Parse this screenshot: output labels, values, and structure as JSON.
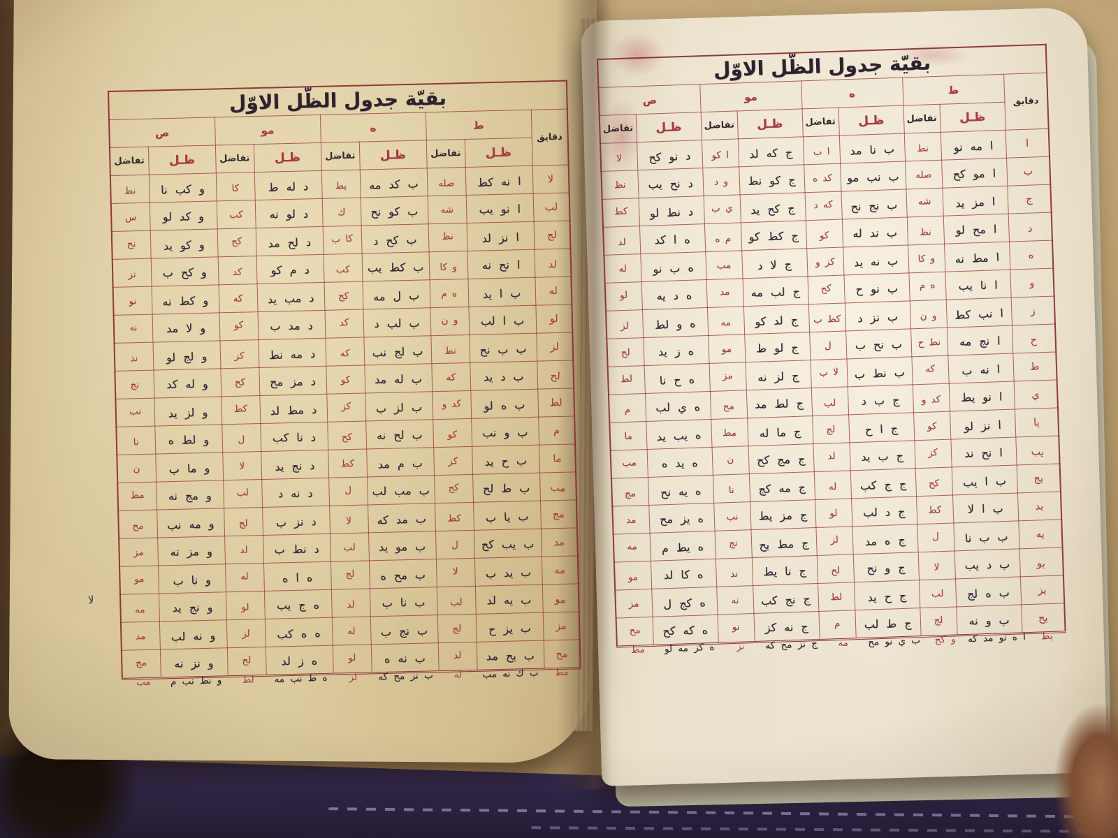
{
  "artifact": {
    "description_label": "manuscript-tangent-table-spread",
    "margin_note": "لا"
  },
  "colors": {
    "paper_left": "#d9c79b",
    "paper_right": "#ece4d0",
    "grid_maroon": "#8a2a32",
    "ink_black": "#32283a",
    "ink_red": "#a33b42",
    "cloth_navy": "#2c2447",
    "background_tan": "#bba06f"
  },
  "pages": {
    "right": {
      "title": "بقيّة جدول الظّل الاوّل",
      "corner_header": "دقايق",
      "col_zill": "ظـل",
      "col_diff": "تفاضل",
      "group_labels": [
        "ط",
        "ه",
        "مو",
        "ص"
      ],
      "rows": [
        [
          "ا",
          "ا مه نو",
          "نط",
          "ب نا مد",
          "ا ب",
          "ج كه لد",
          "ا كو",
          "د نو كح",
          "لا"
        ],
        [
          "ب",
          "ا مو كح",
          "صله",
          "ب نب مو",
          "كد ه",
          "ج كو نط",
          "و د",
          "د نح يب",
          "نظ"
        ],
        [
          "ج",
          "ا مز يد",
          "شه",
          "ب نج نح",
          "كه د",
          "ج كح يد",
          "ي ب",
          "د نط لو",
          "كط"
        ],
        [
          "د",
          "ا مح لو",
          "نظ",
          "ب ند له",
          "كو",
          "ج كط كو",
          "م ه",
          "ه ا كد",
          "لد"
        ],
        [
          "ه",
          "ا مط نه",
          "و كا",
          "ب نه يد",
          "كز و",
          "ج لا د",
          "مب",
          "ه ب نو",
          "له"
        ],
        [
          "و",
          "ا نا يب",
          "ه م",
          "ب نو ح",
          "كح",
          "ج لب مه",
          "مد",
          "ه د يه",
          "لو"
        ],
        [
          "ز",
          "ا نب كط",
          "و ن",
          "ب نز د",
          "كط ب",
          "ج لد كو",
          "مه",
          "ه و لط",
          "لز"
        ],
        [
          "ح",
          "ا نج مه",
          "نط ح",
          "ب نح ب",
          "ل",
          "ج لو ط",
          "مو",
          "ه ز يد",
          "لح"
        ],
        [
          "ط",
          "ا نه ب",
          "كه",
          "ب نط ب",
          "لا ب",
          "ج لز نه",
          "مز",
          "ه ح نا",
          "لط"
        ],
        [
          "ي",
          "ا نو يط",
          "كد و",
          "ج ب د",
          "لب",
          "ج لط مد",
          "مح",
          "ه ي لب",
          "م"
        ],
        [
          "يا",
          "ا نز لو",
          "كو",
          "ج ا ح",
          "لج",
          "ج ما له",
          "مط",
          "ه يب يد",
          "ما"
        ],
        [
          "يب",
          "ا نح ند",
          "كز",
          "ج ب يد",
          "لد",
          "ج مج كح",
          "ن",
          "ه يد ه",
          "مب"
        ],
        [
          "يج",
          "ب ا يب",
          "كح",
          "ج ج كب",
          "له",
          "ج مه كج",
          "نا",
          "ه يه نح",
          "مج"
        ],
        [
          "يد",
          "ب ا لا",
          "كط",
          "ج د لب",
          "لو",
          "ج مز يط",
          "نب",
          "ه يز مح",
          "مد"
        ],
        [
          "يه",
          "ب ب نا",
          "ل",
          "ج ه مد",
          "لز",
          "ج مط يح",
          "نج",
          "ه يط م",
          "مه"
        ],
        [
          "يو",
          "ب د يب",
          "لا",
          "ج و نح",
          "لح",
          "ج نا يط",
          "ند",
          "ه كا لد",
          "مو"
        ],
        [
          "يز",
          "ب ه لج",
          "لب",
          "ج ح يد",
          "لط",
          "ج نج كب",
          "نه",
          "ه كج ل",
          "مز"
        ],
        [
          "يح",
          "ب و نه",
          "لج",
          "ج ط لب",
          "م",
          "ج نه كز",
          "نو",
          "ه كه كح",
          "مح"
        ]
      ],
      "overflow": [
        "يط",
        "ا ه نو مد كه",
        "و كح",
        "ب ي نو مح",
        "مه",
        "ج نز مح كه",
        "نز",
        "ه كز مه لو",
        "مط"
      ]
    },
    "left": {
      "title": "بقيّة جدول الظّل الاوّل",
      "corner_header": "دقايق",
      "col_zill": "ظـل",
      "col_diff": "تفاضل",
      "group_labels": [
        "ط",
        "ه",
        "مو",
        "ص"
      ],
      "rows": [
        [
          "لا",
          "ا نه كط",
          "صله",
          "ب كد مه",
          "يط",
          "د له ط",
          "كا",
          "و كب نا",
          "نط"
        ],
        [
          "لب",
          "ا نو يب",
          "شه",
          "ب كو نح",
          "ك",
          "د لو نه",
          "كب",
          "و كد لو",
          "س"
        ],
        [
          "لج",
          "ا نز لد",
          "نظ",
          "ب كح د",
          "كا ب",
          "د لح مد",
          "كج",
          "و كو يد",
          "نح"
        ],
        [
          "لد",
          "ا نح نه",
          "و كا",
          "ب كط يب",
          "كب",
          "د م كو",
          "كد",
          "و كح ب",
          "نز"
        ],
        [
          "له",
          "ب ا يد",
          "ه م",
          "ب ل مه",
          "كج",
          "د مب يد",
          "كه",
          "و كط نه",
          "نو"
        ],
        [
          "لو",
          "ب ا لب",
          "و ن",
          "ب لب د",
          "كد",
          "د مد ب",
          "كو",
          "و لا مد",
          "نه"
        ],
        [
          "لز",
          "ب ب نح",
          "نط",
          "ب لج نب",
          "كه",
          "د مه نط",
          "كز",
          "و لج لو",
          "ند"
        ],
        [
          "لح",
          "ب د يد",
          "كه",
          "ب له مد",
          "كو",
          "د مز مح",
          "كح",
          "و له كد",
          "نج"
        ],
        [
          "لط",
          "ب ه لو",
          "كد و",
          "ب لز ب",
          "كز",
          "د مط لد",
          "كط",
          "و لز يد",
          "نب"
        ],
        [
          "م",
          "ب و نب",
          "كو",
          "ب لح نه",
          "كح",
          "د نا كب",
          "ل",
          "و لط ه",
          "نا"
        ],
        [
          "ما",
          "ب ح يد",
          "كز",
          "ب م مد",
          "كط",
          "د نج يد",
          "لا",
          "و ما ب",
          "ن"
        ],
        [
          "مب",
          "ب ط لح",
          "كح",
          "ب مب لب",
          "ل",
          "د نه د",
          "لب",
          "و مج نه",
          "مط"
        ],
        [
          "مج",
          "ب يا ب",
          "كط",
          "ب مد كه",
          "لا",
          "د نز ب",
          "لج",
          "و مه نب",
          "مح"
        ],
        [
          "مد",
          "ب يب كح",
          "ل",
          "ب مو يد",
          "لب",
          "د نط ب",
          "لد",
          "و مز نه",
          "مز"
        ],
        [
          "مه",
          "ب يد ب",
          "لا",
          "ب مح ه",
          "لج",
          "ه ا ه",
          "له",
          "و نا ب",
          "مو"
        ],
        [
          "مو",
          "ب يه لد",
          "لب",
          "ب نا ب",
          "لد",
          "ه ج يب",
          "لو",
          "و نج يد",
          "مه"
        ],
        [
          "مز",
          "ب يز ح",
          "لج",
          "ب نج ب",
          "له",
          "ه ه كب",
          "لز",
          "و نه لب",
          "مد"
        ],
        [
          "مح",
          "ب يح مد",
          "لد",
          "ب نه ه",
          "لو",
          "ه ز لد",
          "لح",
          "و نز نه",
          "مج"
        ]
      ],
      "overflow": [
        "مط",
        "ب ك نه مب",
        "له",
        "ب نز مح كه",
        "لز",
        "ه ط نب مه",
        "لط",
        "و نط نب م",
        "مب"
      ]
    }
  }
}
